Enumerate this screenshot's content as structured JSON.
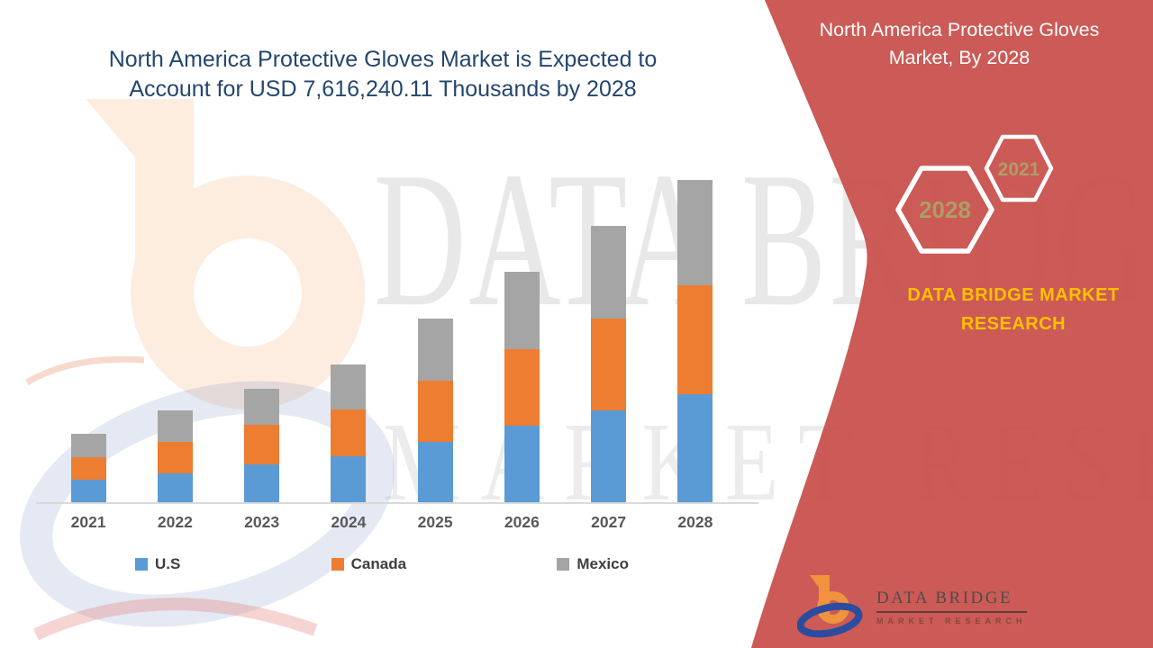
{
  "colors": {
    "accent_red": "#C9514D",
    "title_blue": "#24466E",
    "hexagon_year_text": "#AE9D68",
    "brand_yellow": "#FFC000",
    "axis_label_gray": "#595959",
    "us_blue": "#5B9BD5",
    "canada_orange": "#ED7D31",
    "mexico_gray": "#A5A5A5"
  },
  "main_title": {
    "line1": "North America Protective Gloves Market is Expected to",
    "line2": "Account for USD 7,616,240.11 Thousands by 2028"
  },
  "side_panel": {
    "title_line1": "North America Protective Gloves",
    "title_line2": "Market, By 2028",
    "hexagon_large_year": "2028",
    "hexagon_small_year": "2021",
    "brand_line1": "DATA BRIDGE MARKET",
    "brand_line2": "RESEARCH"
  },
  "logo": {
    "name": "DATA BRIDGE",
    "tagline": "MARKET RESEARCH"
  },
  "watermark": {
    "line1": "DATA BRIDGE",
    "line2": "MARKET RESEARCH"
  },
  "chart_data": {
    "type": "bar",
    "stacked": true,
    "title": "North America Protective Gloves Market is Expected to Account for USD 7,616,240.11 Thousands by 2028",
    "units": "USD Thousands",
    "categories": [
      "2021",
      "2022",
      "2023",
      "2024",
      "2025",
      "2026",
      "2027",
      "2028"
    ],
    "series": [
      {
        "name": "U.S",
        "color": "#5B9BD5",
        "values": [
          531000,
          681000,
          894000,
          1085000,
          1425000,
          1808000,
          2170000,
          2553000
        ]
      },
      {
        "name": "Canada",
        "color": "#ED7D31",
        "values": [
          532000,
          745000,
          936000,
          1106000,
          1447000,
          1808000,
          2170000,
          2574000
        ]
      },
      {
        "name": "Mexico",
        "color": "#A5A5A5",
        "values": [
          553000,
          745000,
          851000,
          1064000,
          1468000,
          1830000,
          2191000,
          2489000
        ]
      }
    ],
    "y_axis": {
      "visible": false,
      "min": 0,
      "max_estimated": 7616240.11
    },
    "gridlines": false,
    "legend_position": "bottom"
  }
}
